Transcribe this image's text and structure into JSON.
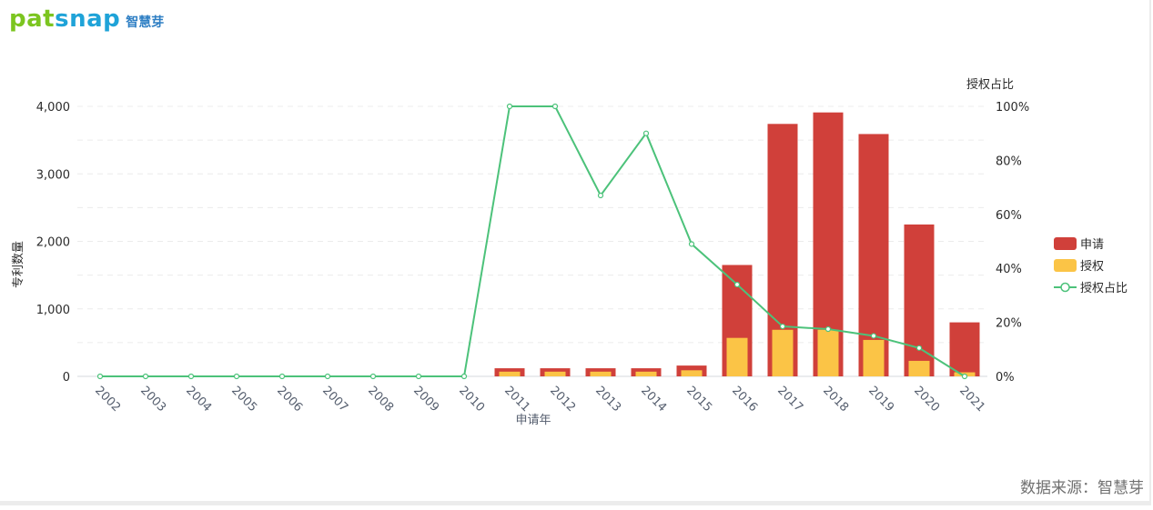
{
  "brand": {
    "wordmark_a": "pat",
    "wordmark_b": "snap",
    "name_cn": "智慧芽"
  },
  "source_note": "数据来源：智慧芽",
  "colors": {
    "applications": "#d0403a",
    "grants": "#fbc446",
    "ratio": "#4cc27a"
  },
  "chart_data": {
    "type": "bar",
    "categories": [
      "2002",
      "2003",
      "2004",
      "2005",
      "2006",
      "2007",
      "2008",
      "2009",
      "2010",
      "2011",
      "2012",
      "2013",
      "2014",
      "2015",
      "2016",
      "2017",
      "2018",
      "2019",
      "2020",
      "2021"
    ],
    "series": [
      {
        "name": "申请",
        "type": "bar",
        "axis": "left",
        "values": [
          0,
          0,
          0,
          0,
          0,
          0,
          0,
          0,
          0,
          120,
          120,
          120,
          120,
          160,
          1650,
          3740,
          3910,
          3590,
          2250,
          800
        ]
      },
      {
        "name": "授权",
        "type": "bar",
        "axis": "left",
        "values": [
          0,
          0,
          0,
          0,
          0,
          0,
          0,
          0,
          0,
          70,
          70,
          70,
          70,
          90,
          570,
          690,
          690,
          540,
          230,
          60
        ]
      },
      {
        "name": "授权占比",
        "type": "line",
        "axis": "right",
        "values": [
          0,
          0,
          0,
          0,
          0,
          0,
          0,
          0,
          0,
          100,
          100,
          67,
          90,
          49,
          34,
          18.5,
          17.5,
          15,
          10.5,
          0
        ]
      }
    ],
    "xlabel": "申请年",
    "ylabel": "专利数量",
    "y2label": "授权占比",
    "ylim": [
      0,
      4000
    ],
    "y_ticks": [
      "0",
      "1,000",
      "2,000",
      "3,000",
      "4,000"
    ],
    "y2lim": [
      0,
      100
    ],
    "y2_ticks": [
      "0%",
      "20%",
      "40%",
      "60%",
      "80%",
      "100%"
    ],
    "legend": [
      "申请",
      "授权",
      "授权占比"
    ],
    "legend_position": "right",
    "grid": true
  }
}
